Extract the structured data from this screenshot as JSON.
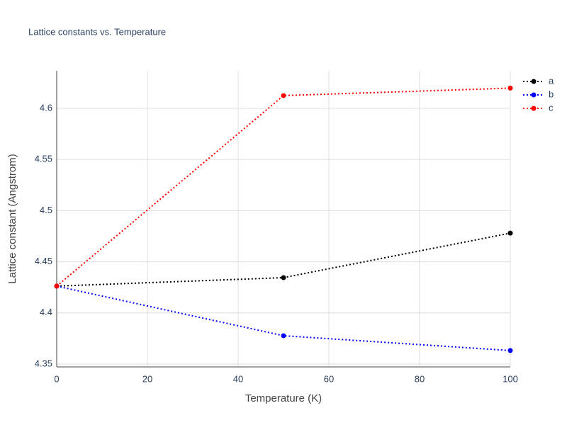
{
  "chart_data": {
    "type": "line",
    "title": "Lattice constants vs. Temperature",
    "x_label": "Temperature (K)",
    "y_label": "Lattice constant (Angstrom)",
    "x": [
      0,
      50,
      100
    ],
    "series": [
      {
        "name": "a",
        "color": "#000000",
        "values": [
          4.4262,
          4.4345,
          4.478
        ]
      },
      {
        "name": "b",
        "color": "#0000ff",
        "values": [
          4.4262,
          4.3777,
          4.3632
        ]
      },
      {
        "name": "c",
        "color": "#ff0000",
        "values": [
          4.4262,
          4.6125,
          4.6198
        ]
      }
    ],
    "xlim": [
      0,
      100
    ],
    "xticks": [
      0,
      20,
      40,
      60,
      80,
      100
    ],
    "ylim": [
      4.3472,
      4.6367
    ],
    "yticks": [
      4.35,
      4.4,
      4.45,
      4.5,
      4.55,
      4.6
    ],
    "grid": true,
    "legend": "top-right"
  }
}
